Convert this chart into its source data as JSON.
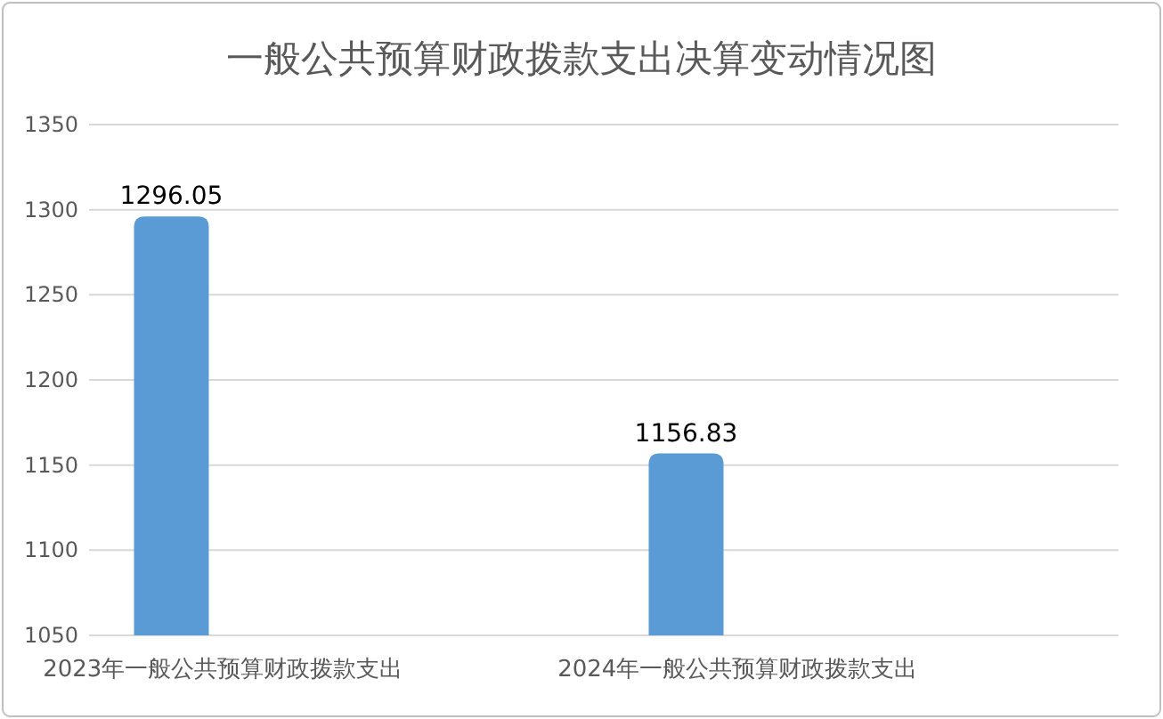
{
  "chart_data": {
    "type": "bar",
    "title": "一般公共预算财政拨款支出决算变动情况图",
    "categories": [
      "2023年一般公共预算财政拨款支出",
      "2024年一般公共预算财政拨款支出"
    ],
    "values": [
      1296.05,
      1156.83
    ],
    "color": "#5b9bd5",
    "data_labels": true,
    "ylim": [
      1050,
      1350
    ],
    "yticks": [
      1050,
      1100,
      1150,
      1200,
      1250,
      1300,
      1350
    ],
    "grid": "y"
  }
}
